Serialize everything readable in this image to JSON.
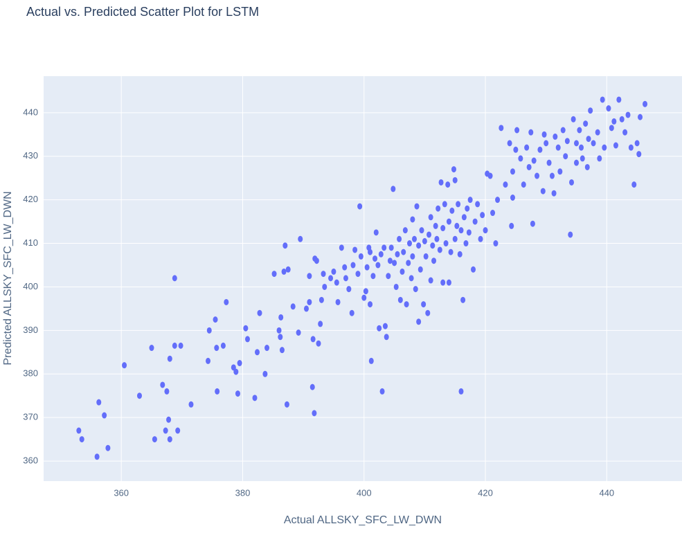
{
  "chart_data": {
    "type": "scatter",
    "title": "Actual vs. Predicted Scatter Plot for LSTM",
    "x_label": "Actual ALLSKY_SFC_LW_DWN",
    "y_label": "Predicted ALLSKY_SFC_LW_DWN",
    "color": "#636efa",
    "grid": true,
    "xlim": [
      347.2,
      452.4
    ],
    "ylim": [
      355.4,
      448.4
    ],
    "xticks": [
      360,
      380,
      400,
      420,
      440
    ],
    "yticks": [
      360,
      370,
      380,
      390,
      400,
      410,
      420,
      430,
      440
    ],
    "x": [
      353,
      353.5,
      356,
      356.3,
      357.2,
      357.8,
      360.5,
      363,
      365,
      365.5,
      366.8,
      367.3,
      367.5,
      367.8,
      368,
      368,
      368.8,
      368.8,
      369.3,
      369.8,
      371.5,
      374.3,
      374.5,
      375.5,
      375.7,
      375.8,
      376.8,
      377.3,
      378.5,
      378.9,
      379.2,
      379.5,
      380.5,
      380.8,
      382,
      382.4,
      382.8,
      383.7,
      384,
      385.2,
      386,
      386.2,
      386.3,
      386.5,
      386.8,
      387,
      387.3,
      387.5,
      388.3,
      389.2,
      389.5,
      390.5,
      391,
      391,
      391.5,
      391.6,
      391.8,
      391.9,
      392.2,
      392.5,
      392.8,
      393,
      393.3,
      393.5,
      394.5,
      395,
      395.7,
      395.5,
      396.3,
      396.8,
      397,
      397.5,
      398,
      398.2,
      398.5,
      399,
      399.3,
      399.5,
      400,
      400.3,
      400.5,
      400.8,
      401,
      401,
      401.2,
      401.5,
      401.8,
      402,
      402.3,
      402.5,
      402.8,
      403,
      403.3,
      403.5,
      403.7,
      404,
      404.3,
      404.5,
      404.8,
      405,
      405.3,
      405.5,
      405.8,
      406,
      406.3,
      406.5,
      406.8,
      407,
      407.3,
      407.5,
      407.8,
      408,
      408,
      408.3,
      408.5,
      408.7,
      409,
      409,
      409.3,
      409.5,
      409.8,
      410,
      410.2,
      410.5,
      410.7,
      411,
      411,
      411.3,
      411.5,
      411.8,
      412,
      412.2,
      412.5,
      412.7,
      413,
      413,
      413.3,
      413.5,
      413.8,
      414,
      414,
      414.3,
      414.5,
      414.8,
      415,
      415,
      415.3,
      415.5,
      415.8,
      416,
      416,
      416.3,
      416.5,
      416.8,
      417,
      417.3,
      417.5,
      418,
      418.3,
      418.7,
      419.2,
      419.5,
      420,
      420.3,
      420.8,
      421.2,
      421.7,
      422,
      422.6,
      423.3,
      424,
      424.3,
      424.5,
      424.5,
      425,
      425.2,
      425.8,
      426.3,
      426.8,
      427.2,
      427.5,
      427.8,
      428,
      428.5,
      429,
      429.5,
      429.7,
      430,
      430.5,
      431,
      431.3,
      431.5,
      432,
      432.3,
      432.8,
      433.2,
      433.5,
      434,
      434.2,
      434.5,
      435,
      435,
      435.5,
      435.8,
      436,
      436.5,
      436.8,
      437,
      437.3,
      437.8,
      438.5,
      438.8,
      439.3,
      439.6,
      440.3,
      440.8,
      441.2,
      441.5,
      442,
      442.5,
      443,
      443.5,
      444,
      444.5,
      445,
      445.3,
      445.5,
      446.3
    ],
    "values": [
      367,
      365,
      361,
      373.5,
      370.5,
      363,
      382,
      375,
      386,
      365,
      377.5,
      367,
      376,
      369.5,
      383.5,
      365,
      402,
      386.5,
      367,
      386.5,
      373,
      383,
      390,
      392.5,
      386,
      376,
      386.5,
      396.5,
      381.5,
      380.5,
      375.5,
      382.5,
      390.5,
      388,
      374.5,
      385,
      394,
      380,
      386,
      403,
      390,
      388.5,
      393,
      385.5,
      403.5,
      409.5,
      373,
      404,
      395.5,
      389.5,
      411,
      395,
      396.5,
      402.5,
      377,
      388,
      371,
      406.5,
      406,
      387,
      391.5,
      397,
      403,
      400,
      402,
      403.5,
      396.5,
      401,
      409,
      404.5,
      402,
      399.5,
      394,
      405,
      408.5,
      403,
      418.5,
      407,
      397.5,
      399,
      404.5,
      409,
      396,
      408,
      383,
      402.5,
      406.5,
      412.5,
      405,
      390.5,
      407.5,
      376,
      409,
      391,
      388.5,
      402.5,
      406,
      409,
      422.5,
      405.5,
      400,
      407.5,
      411,
      397,
      403.5,
      408,
      413,
      396,
      405.5,
      410,
      402,
      415.5,
      407,
      411,
      399.5,
      418.5,
      392,
      409.5,
      404,
      413,
      396,
      410.5,
      407,
      394,
      412,
      401.5,
      416,
      409.5,
      406,
      414,
      411,
      418,
      408.5,
      424,
      401,
      413.5,
      419,
      410,
      423.5,
      415,
      401,
      408,
      417.5,
      427,
      411,
      424.5,
      414,
      419,
      407.5,
      376,
      413,
      397,
      416,
      410,
      418,
      412.5,
      420,
      404,
      415,
      419,
      411,
      416.5,
      413,
      426,
      425.5,
      417,
      410,
      420,
      436.5,
      423.5,
      433,
      414,
      420.5,
      426.5,
      431.5,
      436,
      429.5,
      423.5,
      432,
      427.5,
      435.5,
      414.5,
      429,
      425.5,
      431.5,
      422,
      435,
      433,
      428.5,
      425.5,
      421.5,
      434.5,
      432,
      426.5,
      436,
      430,
      433.5,
      412,
      424,
      438.5,
      428.5,
      433,
      436,
      432,
      429.5,
      437.5,
      427.5,
      434,
      440.5,
      433,
      435.5,
      429.5,
      443,
      432,
      441,
      436.5,
      438,
      432.5,
      443,
      438.5,
      435.5,
      439.5,
      432,
      423.5,
      433,
      430.5,
      439,
      442
    ]
  }
}
